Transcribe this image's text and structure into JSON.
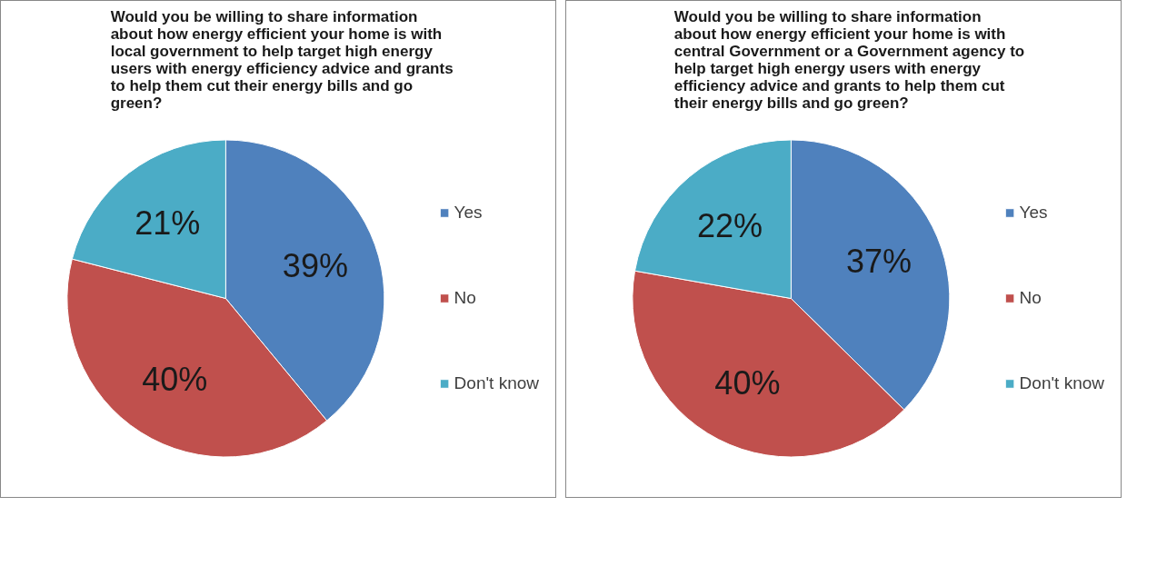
{
  "chart_data": [
    {
      "type": "pie",
      "title": "Would you be willing to share information\nabout how energy efficient your home is with\nlocal government to help target high energy\nusers  with energy efficiency advice and grants\nto help them cut their energy bills and go\ngreen?",
      "categories": [
        "Yes",
        "No",
        "Don't know"
      ],
      "values": [
        39,
        40,
        21
      ],
      "value_labels": [
        "39%",
        "40%",
        "21%"
      ],
      "colors": [
        "#4f81bd",
        "#c0504d",
        "#4bacc6"
      ],
      "legend": "right"
    },
    {
      "type": "pie",
      "title": "Would you be willing to share information\nabout how energy efficient your home is with\ncentral Government or a Government agency to\nhelp target high energy users with energy\nefficiency advice and grants to help them cut\ntheir energy bills and go green?",
      "categories": [
        "Yes",
        "No",
        "Don't know"
      ],
      "values": [
        37,
        40,
        22
      ],
      "value_labels": [
        "37%",
        "40%",
        "22%"
      ],
      "colors": [
        "#4f81bd",
        "#c0504d",
        "#4bacc6"
      ],
      "legend": "right"
    }
  ]
}
